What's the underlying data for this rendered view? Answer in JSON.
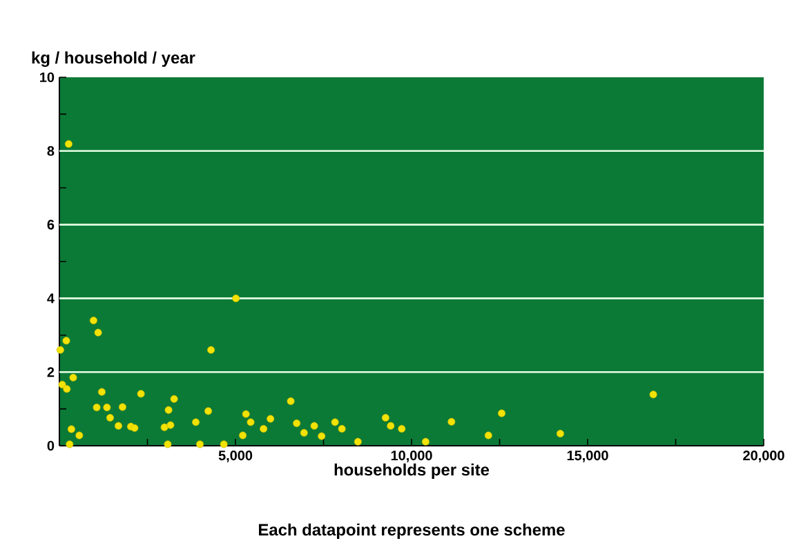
{
  "chart_data": {
    "type": "scatter",
    "ylabel": "kg / household / year",
    "xlabel": "households per site",
    "annotations": [
      "Each datapoint represents one scheme"
    ],
    "x": [
      263,
      27,
      196,
      80,
      211,
      392,
      341,
      565,
      290,
      969,
      1100,
      1205,
      1060,
      1350,
      1793,
      1440,
      1676,
      2029,
      2135,
      2316,
      2983,
      3155,
      3100,
      3257,
      3077,
      3874,
      3991,
      4227,
      4305,
      4670,
      5012,
      5208,
      5298,
      5432,
      5797,
      5993,
      6570,
      6738,
      6947,
      7237,
      7445,
      7826,
      8022,
      8477,
      9262,
      9407,
      9721,
      10400,
      11134,
      12182,
      12559,
      14223,
      16864
    ],
    "series": [
      {
        "color": "#f2e205",
        "values": [
          8.19,
          2.6,
          2.85,
          1.66,
          1.54,
          1.85,
          0.45,
          0.28,
          0.04,
          3.4,
          3.07,
          1.46,
          1.04,
          1.04,
          1.05,
          0.76,
          0.54,
          0.52,
          0.48,
          1.41,
          0.5,
          0.56,
          0.97,
          1.27,
          0.04,
          0.64,
          0.04,
          0.94,
          2.6,
          0.04,
          4.0,
          0.28,
          0.86,
          0.64,
          0.46,
          0.73,
          1.21,
          0.61,
          0.35,
          0.54,
          0.26,
          0.64,
          0.46,
          0.11,
          0.76,
          0.54,
          0.46,
          0.11,
          0.65,
          0.28,
          0.88,
          0.33,
          1.39
        ]
      }
    ],
    "marker": "circle",
    "xlim": [
      0,
      20000
    ],
    "ylim": [
      0,
      10
    ],
    "xticks": [
      {
        "value": 0,
        "label": null
      },
      {
        "value": 2500,
        "label": null
      },
      {
        "value": 5000,
        "label": "5,000"
      },
      {
        "value": 7500,
        "label": null
      },
      {
        "value": 10000,
        "label": "10,000"
      },
      {
        "value": 12500,
        "label": null
      },
      {
        "value": 15000,
        "label": "15,000"
      },
      {
        "value": 17500,
        "label": null
      },
      {
        "value": 20000,
        "label": "20,000"
      }
    ],
    "yticks": [
      0,
      {
        "value": 1,
        "label": null
      },
      2,
      {
        "value": 3,
        "label": null
      },
      4,
      {
        "value": 5,
        "label": null
      },
      6,
      {
        "value": 7,
        "label": null
      },
      8,
      {
        "value": 9,
        "label": null
      },
      10
    ],
    "grid": "y"
  }
}
